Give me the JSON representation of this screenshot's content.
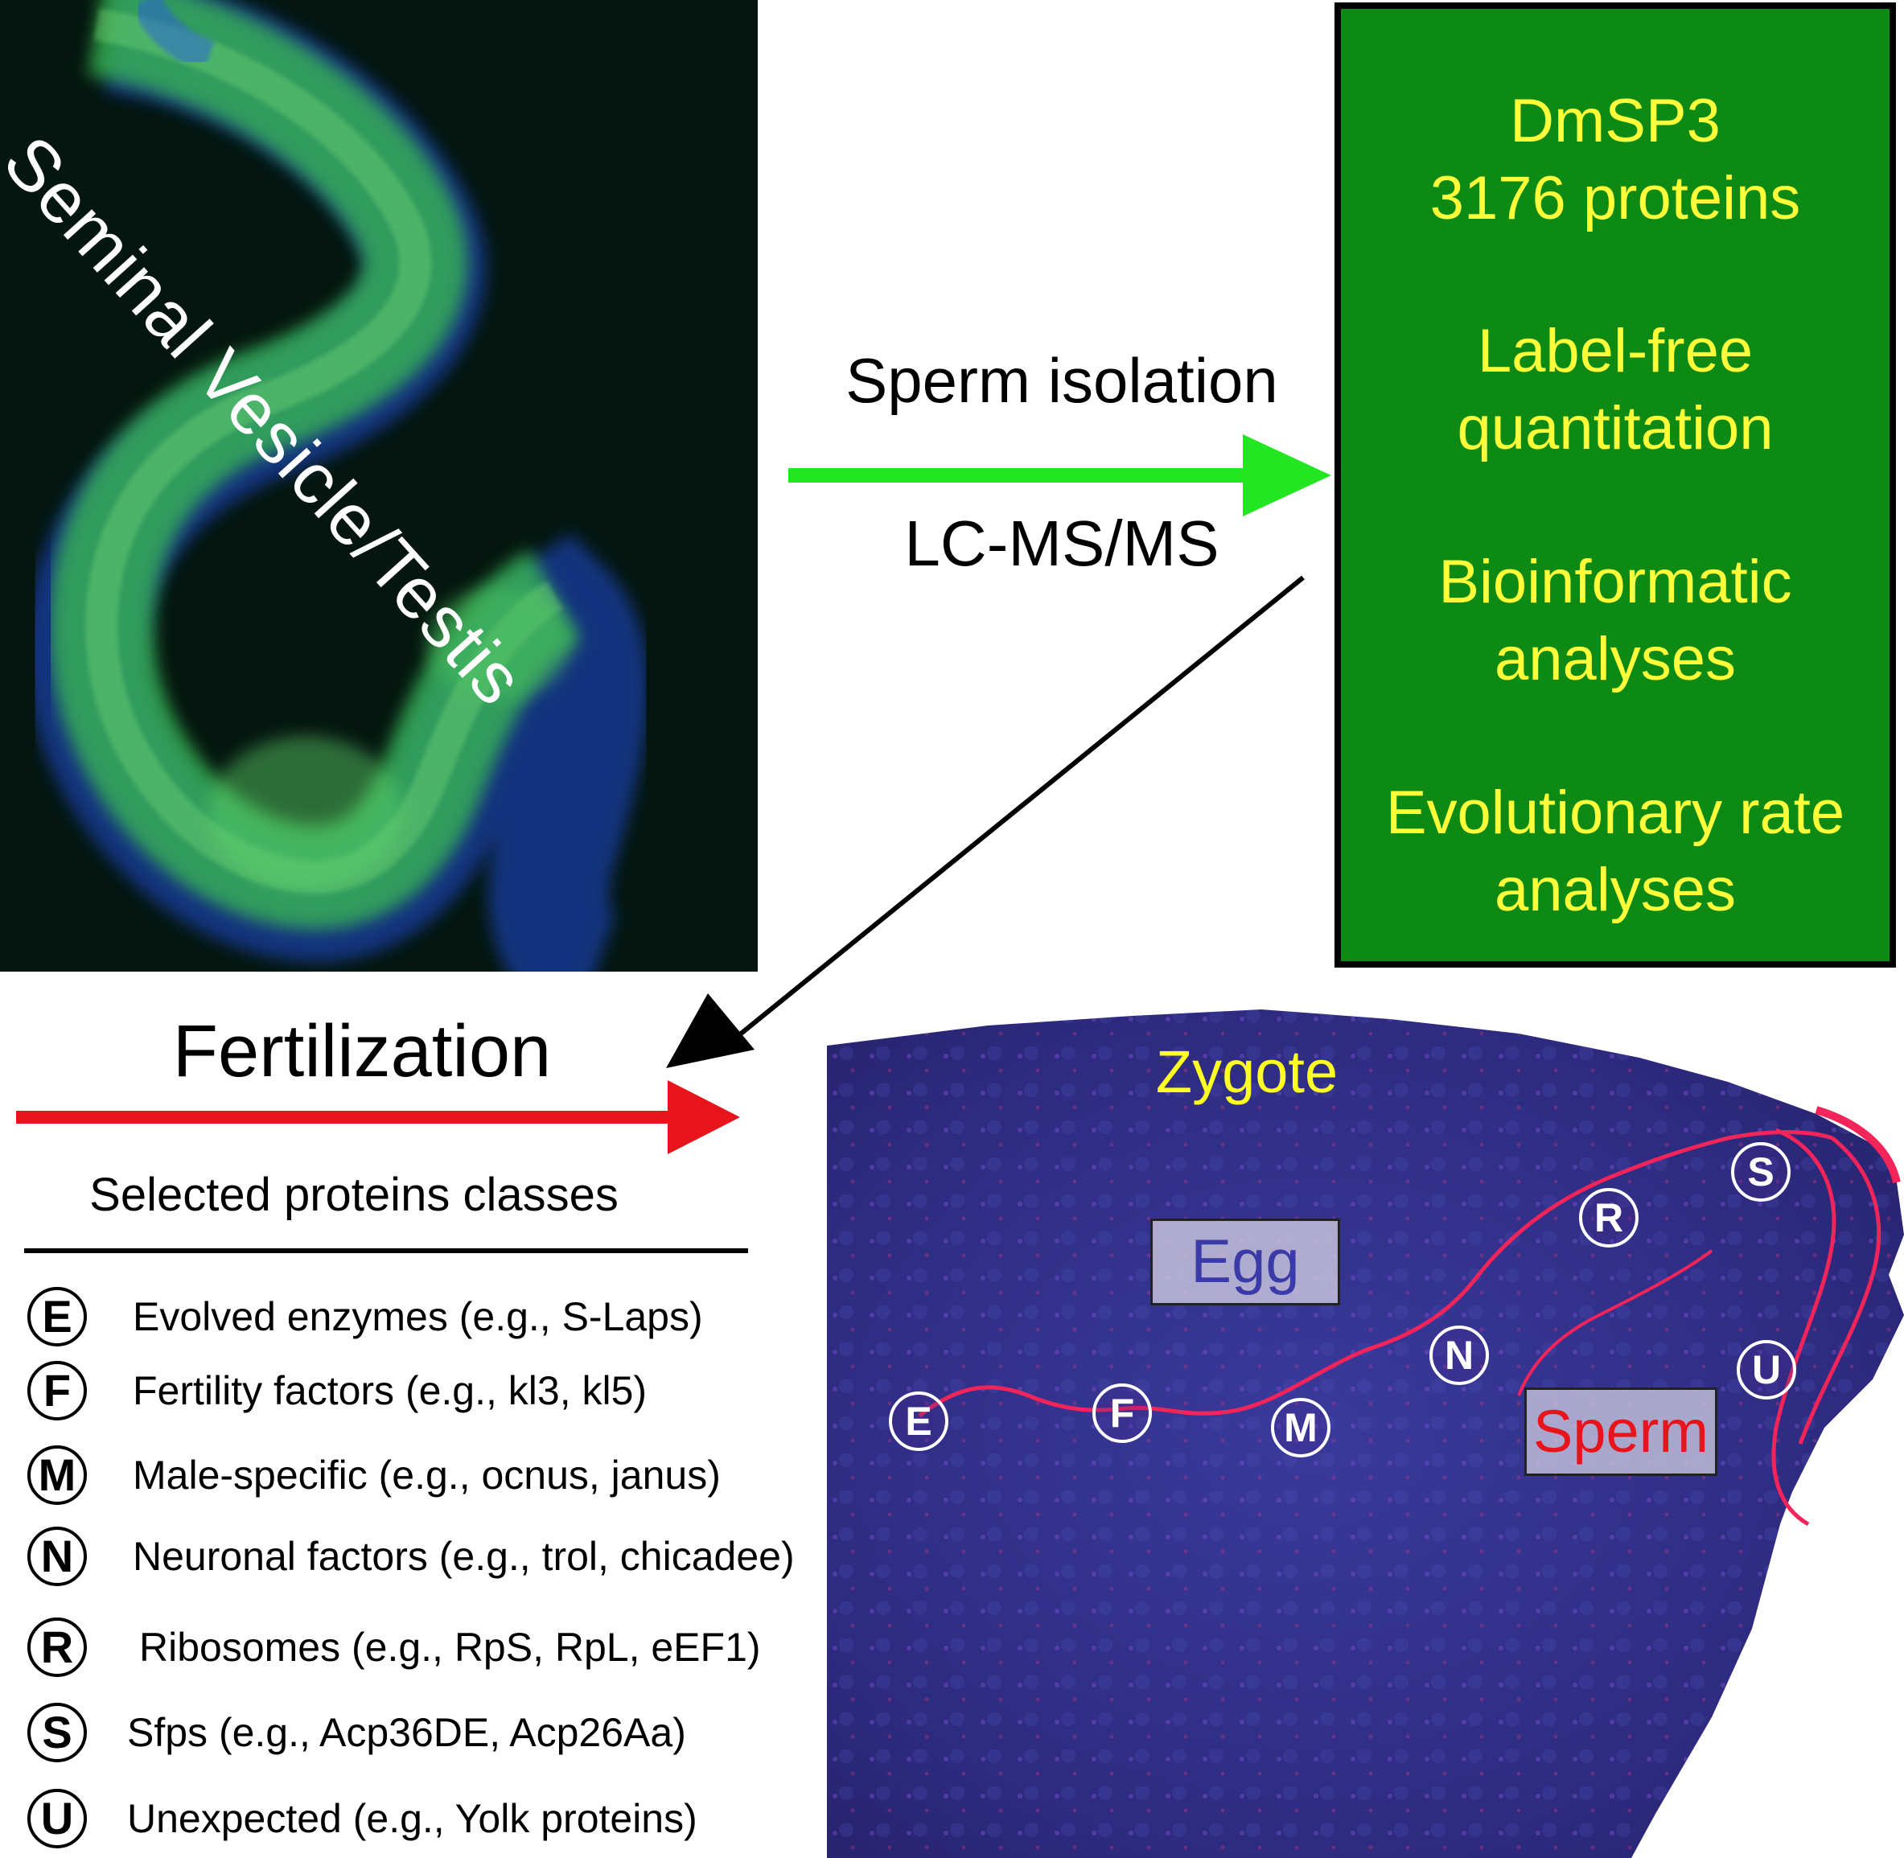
{
  "micrograph": {
    "label": "Seminal Vesicle/Testis"
  },
  "arrow_top": {
    "label_above": "Sperm isolation",
    "label_below": "LC-MS/MS",
    "color": "#22e622"
  },
  "results_box": {
    "background": "#0c8a14",
    "text_color": "#ffff3a",
    "lines": [
      "DmSP3",
      "3176 proteins",
      "Label-free",
      "quantitation",
      "Bioinformatic",
      "analyses",
      "Evolutionary rate",
      "analyses"
    ]
  },
  "fertilization": {
    "label": "Fertilization",
    "arrow_color": "#e8141c"
  },
  "classes": {
    "title": "Selected proteins classes",
    "items": [
      {
        "letter": "E",
        "text": "Evolved enzymes (e.g., S-Laps)"
      },
      {
        "letter": "F",
        "text": "Fertility factors (e.g., kl3, kl5)"
      },
      {
        "letter": "M",
        "text": "Male-specific (e.g., ocnus, janus)"
      },
      {
        "letter": "N",
        "text": "Neuronal factors (e.g., trol, chicadee)"
      },
      {
        "letter": "R",
        "text": "Ribosomes (e.g., RpS, RpL, eEF1)"
      },
      {
        "letter": "S",
        "text": "Sfps (e.g., Acp36DE, Acp26Aa)"
      },
      {
        "letter": "U",
        "text": "Unexpected (e.g., Yolk proteins)"
      }
    ]
  },
  "zygote": {
    "title": "Zygote",
    "egg_label": "Egg",
    "sperm_label": "Sperm",
    "markers": [
      "E",
      "F",
      "M",
      "N",
      "R",
      "S",
      "U"
    ]
  }
}
